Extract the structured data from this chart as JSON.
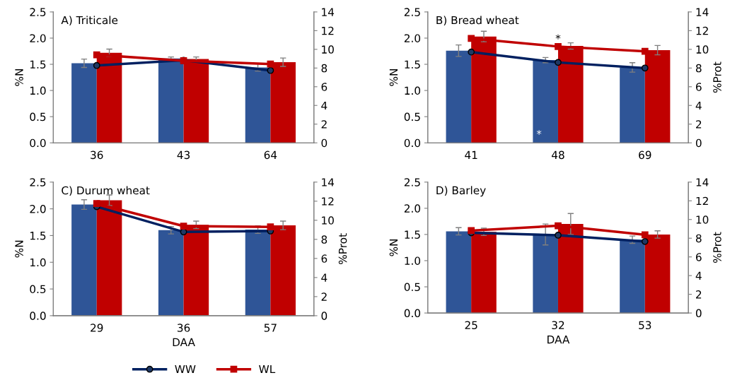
{
  "chart_data": [
    {
      "type": "bar",
      "title": "A) Triticale",
      "ylabel": "%N",
      "categories": [
        "36",
        "43",
        "64"
      ],
      "ylim": [
        0,
        2.5
      ],
      "yticks": [
        {
          "value": 0,
          "label": "0.0"
        },
        {
          "value": 0.5,
          "label": "0.5"
        },
        {
          "value": 1,
          "label": "1.0"
        },
        {
          "value": 1.5,
          "label": "1.5"
        },
        {
          "value": 2,
          "label": "2.0"
        },
        {
          "value": 2.5,
          "label": "2.5"
        }
      ],
      "y2lim": [
        0,
        14
      ],
      "y2ticks": [
        0,
        2,
        4,
        6,
        8,
        10,
        12,
        14
      ],
      "legend": false,
      "series": [
        {
          "color": "#2f5597",
          "values": [
            1.52,
            1.61,
            1.44
          ],
          "errors": [
            0.08,
            0.03,
            0.07
          ]
        },
        {
          "color": "#c00000",
          "values": [
            1.72,
            1.6,
            1.54
          ],
          "errors": [
            0.07,
            0.04,
            0.08
          ]
        },
        {
          "type": "line",
          "axis": "y2",
          "marker": "circle",
          "color": "#002060",
          "values": [
            8.27,
            8.83,
            7.74
          ]
        },
        {
          "type": "line",
          "axis": "y2",
          "marker": "square",
          "color": "#c00000",
          "values": [
            9.42,
            8.78,
            8.43
          ]
        }
      ]
    },
    {
      "type": "bar",
      "title": "B) Bread wheat",
      "ylabel": "%N",
      "y2label": "%Prot",
      "categories": [
        "41",
        "48",
        "69"
      ],
      "ylim": [
        0,
        2.5
      ],
      "yticks": [
        {
          "value": 0,
          "label": "0.0"
        },
        {
          "value": 0.5,
          "label": "0.5"
        },
        {
          "value": 1,
          "label": "1.0"
        },
        {
          "value": 1.5,
          "label": "1.5"
        },
        {
          "value": 2,
          "label": "2.0"
        },
        {
          "value": 2.5,
          "label": "2.5"
        }
      ],
      "y2lim": [
        0,
        14
      ],
      "y2ticks": [
        0,
        2,
        4,
        6,
        8,
        10,
        12,
        14
      ],
      "legend": false,
      "annotations": [
        "*",
        "*"
      ],
      "series": [
        {
          "color": "#2f5597",
          "values": [
            1.76,
            1.58,
            1.44
          ],
          "errors": [
            0.11,
            0.05,
            0.09
          ]
        },
        {
          "color": "#c00000",
          "values": [
            2.03,
            1.85,
            1.77
          ],
          "errors": [
            0.1,
            0.06,
            0.09
          ]
        },
        {
          "type": "line",
          "axis": "y2",
          "marker": "circle",
          "color": "#002060",
          "values": [
            9.71,
            8.6,
            8.0
          ]
        },
        {
          "type": "line",
          "axis": "y2",
          "marker": "square",
          "color": "#c00000",
          "values": [
            11.16,
            10.3,
            9.79
          ]
        }
      ]
    },
    {
      "type": "bar",
      "title": "C) Durum wheat",
      "ylabel": "%N",
      "y2label": "%Prot",
      "xlabel": "DAA",
      "categories": [
        "29",
        "36",
        "57"
      ],
      "ylim": [
        0,
        2.5
      ],
      "yticks": [
        {
          "value": 0,
          "label": "0.0"
        },
        {
          "value": 0.5,
          "label": "0.5"
        },
        {
          "value": 1,
          "label": "1.0"
        },
        {
          "value": 1.5,
          "label": "1.5"
        },
        {
          "value": 2,
          "label": "2.0"
        },
        {
          "value": 2.5,
          "label": "2.5"
        }
      ],
      "y2lim": [
        0,
        14
      ],
      "y2ticks": [
        0,
        2,
        4,
        6,
        8,
        10,
        12,
        14
      ],
      "legend": false,
      "series": [
        {
          "color": "#2f5597",
          "values": [
            2.08,
            1.6,
            1.61
          ],
          "errors": [
            0.09,
            0.07,
            0.07
          ]
        },
        {
          "color": "#c00000",
          "values": [
            2.16,
            1.7,
            1.69
          ],
          "errors": [
            0.1,
            0.07,
            0.08
          ]
        },
        {
          "type": "line",
          "axis": "y2",
          "marker": "circle",
          "color": "#002060",
          "values": [
            11.42,
            8.78,
            8.88
          ]
        },
        {
          "type": "line",
          "axis": "y2",
          "marker": "square",
          "color": "#c00000",
          "values": [
            11.75,
            9.39,
            9.31
          ]
        }
      ]
    },
    {
      "type": "bar",
      "title": "D) Barley",
      "ylabel": "%N",
      "y2label": "%Prot",
      "xlabel": "DAA",
      "categories": [
        "25",
        "32",
        "53"
      ],
      "ylim": [
        0,
        2.5
      ],
      "yticks": [
        {
          "value": 0,
          "label": "0.0"
        },
        {
          "value": 0.5,
          "label": "0.5"
        },
        {
          "value": 1,
          "label": "1.0"
        },
        {
          "value": 1.5,
          "label": "1.5"
        },
        {
          "value": 2,
          "label": "2.0"
        },
        {
          "value": 2.5,
          "label": "2.5"
        }
      ],
      "y2lim": [
        0,
        14
      ],
      "y2ticks": [
        0,
        2,
        4,
        6,
        8,
        10,
        12,
        14
      ],
      "legend": "bottom",
      "series": [
        {
          "color": "#2f5597",
          "values": [
            1.56,
            1.5,
            1.4
          ],
          "errors": [
            0.07,
            0.2,
            0.07
          ]
        },
        {
          "color": "#c00000",
          "values": [
            1.55,
            1.7,
            1.5
          ],
          "errors": [
            0.07,
            0.2,
            0.07
          ]
        },
        {
          "type": "line",
          "axis": "y2",
          "name": "WW",
          "marker": "circle",
          "color": "#002060",
          "values": [
            8.58,
            8.32,
            7.65
          ]
        },
        {
          "type": "line",
          "axis": "y2",
          "name": "WL",
          "marker": "square",
          "color": "#c00000",
          "values": [
            8.81,
            9.33,
            8.37
          ]
        }
      ]
    }
  ]
}
